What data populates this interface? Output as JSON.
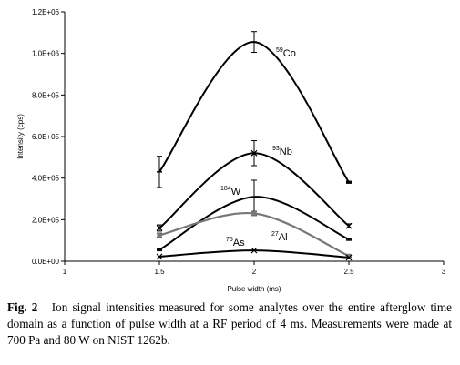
{
  "chart_data": {
    "type": "line",
    "xlabel": "Pulse width (ms)",
    "ylabel": "Intensity (cps)",
    "xlim": [
      1,
      3
    ],
    "ylim": [
      0,
      1200000
    ],
    "x_ticks": [
      "1",
      "1.5",
      "2",
      "2.5",
      "3"
    ],
    "y_ticks": [
      "0.0E+00",
      "2.0E+05",
      "4.0E+05",
      "6.0E+05",
      "8.0E+05",
      "1.0E+06",
      "1.2E+06"
    ],
    "x": [
      1.5,
      2,
      2.5
    ],
    "grid": false,
    "legend": "none",
    "series": [
      {
        "name": "Co",
        "mass": "59",
        "marker": "dash",
        "color": "#000000",
        "values": [
          430000,
          1055000,
          380000
        ],
        "err": [
          75000,
          50000,
          5000
        ]
      },
      {
        "name": "Nb",
        "mass": "93",
        "marker": "x",
        "color": "#000000",
        "values": [
          160000,
          520000,
          170000
        ],
        "err": [
          15000,
          60000,
          10000
        ]
      },
      {
        "name": "W",
        "mass": "184",
        "marker": "dash",
        "color": "#000000",
        "values": [
          55000,
          310000,
          105000
        ],
        "err": [
          5000,
          80000,
          5000
        ]
      },
      {
        "name": "Al",
        "mass": "27",
        "marker": "square",
        "color": "#777777",
        "values": [
          125000,
          230000,
          25000
        ],
        "err": [
          10000,
          10000,
          5000
        ]
      },
      {
        "name": "As",
        "mass": "75",
        "marker": "x",
        "color": "#000000",
        "values": [
          22000,
          52000,
          18000
        ],
        "err": [
          0,
          0,
          0
        ]
      }
    ]
  },
  "caption": {
    "fig_label": "Fig. 2",
    "text": "Ion signal intensities measured for some analytes over the entire afterglow time domain as a function of pulse width at a RF period of 4 ms. Measurements were made at 700 Pa and 80 W on NIST 1262b."
  }
}
